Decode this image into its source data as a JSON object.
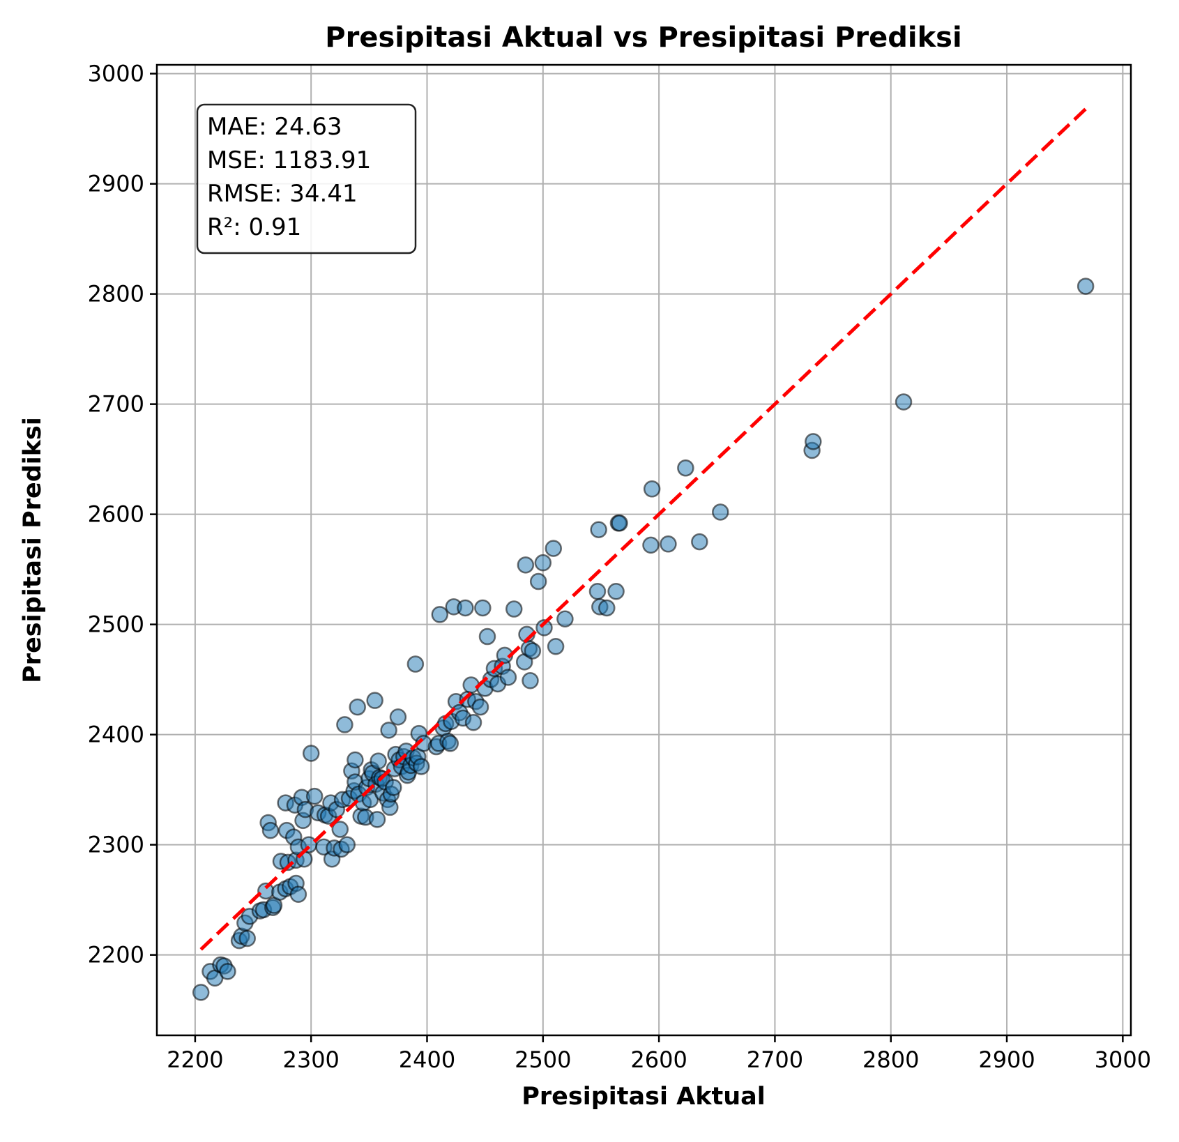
{
  "chart_data": {
    "type": "scatter",
    "title": "Presipitasi Aktual vs Presipitasi Prediksi",
    "xlabel": "Presipitasi Aktual",
    "ylabel": "Presipitasi Prediksi",
    "xlim": [
      2167,
      3007
    ],
    "ylim": [
      2127,
      3008
    ],
    "xticks": [
      2200,
      2300,
      2400,
      2500,
      2600,
      2700,
      2800,
      2900,
      3000
    ],
    "yticks": [
      2200,
      2300,
      2400,
      2500,
      2600,
      2700,
      2800,
      2900,
      3000
    ],
    "grid": true,
    "reference_line": {
      "style": "dashed",
      "color": "#ff0000",
      "from": [
        2205,
        2205
      ],
      "to": [
        2968,
        2968
      ]
    },
    "point_color": "#1f77b4",
    "stats": [
      "MAE: 24.63",
      "MSE: 1183.91",
      "RMSE: 34.41",
      "R²: 0.91"
    ],
    "points": [
      [
        2205,
        2166
      ],
      [
        2213,
        2185
      ],
      [
        2217,
        2179
      ],
      [
        2222,
        2191
      ],
      [
        2225,
        2190
      ],
      [
        2228,
        2185
      ],
      [
        2238,
        2213
      ],
      [
        2240,
        2217
      ],
      [
        2245,
        2215
      ],
      [
        2243,
        2229
      ],
      [
        2247,
        2235
      ],
      [
        2256,
        2240
      ],
      [
        2259,
        2241
      ],
      [
        2261,
        2258
      ],
      [
        2267,
        2243
      ],
      [
        2268,
        2245
      ],
      [
        2273,
        2257
      ],
      [
        2278,
        2260
      ],
      [
        2282,
        2262
      ],
      [
        2287,
        2265
      ],
      [
        2289,
        2255
      ],
      [
        2274,
        2285
      ],
      [
        2280,
        2284
      ],
      [
        2287,
        2286
      ],
      [
        2294,
        2287
      ],
      [
        2263,
        2320
      ],
      [
        2265,
        2313
      ],
      [
        2278,
        2338
      ],
      [
        2279,
        2313
      ],
      [
        2285,
        2307
      ],
      [
        2286,
        2336
      ],
      [
        2289,
        2298
      ],
      [
        2292,
        2343
      ],
      [
        2293,
        2322
      ],
      [
        2295,
        2332
      ],
      [
        2298,
        2300
      ],
      [
        2300,
        2383
      ],
      [
        2303,
        2344
      ],
      [
        2306,
        2329
      ],
      [
        2311,
        2298
      ],
      [
        2312,
        2327
      ],
      [
        2315,
        2326
      ],
      [
        2317,
        2338
      ],
      [
        2318,
        2287
      ],
      [
        2320,
        2297
      ],
      [
        2322,
        2332
      ],
      [
        2325,
        2314
      ],
      [
        2326,
        2296
      ],
      [
        2327,
        2341
      ],
      [
        2329,
        2409
      ],
      [
        2331,
        2300
      ],
      [
        2333,
        2342
      ],
      [
        2335,
        2367
      ],
      [
        2337,
        2349
      ],
      [
        2338,
        2377
      ],
      [
        2338,
        2357
      ],
      [
        2340,
        2425
      ],
      [
        2341,
        2346
      ],
      [
        2343,
        2326
      ],
      [
        2345,
        2338
      ],
      [
        2347,
        2325
      ],
      [
        2348,
        2352
      ],
      [
        2350,
        2360
      ],
      [
        2351,
        2341
      ],
      [
        2352,
        2368
      ],
      [
        2353,
        2365
      ],
      [
        2355,
        2431
      ],
      [
        2356,
        2355
      ],
      [
        2357,
        2323
      ],
      [
        2358,
        2376
      ],
      [
        2359,
        2361
      ],
      [
        2361,
        2360
      ],
      [
        2362,
        2347
      ],
      [
        2364,
        2357
      ],
      [
        2366,
        2341
      ],
      [
        2367,
        2404
      ],
      [
        2368,
        2334
      ],
      [
        2369,
        2346
      ],
      [
        2371,
        2352
      ],
      [
        2372,
        2369
      ],
      [
        2373,
        2382
      ],
      [
        2375,
        2416
      ],
      [
        2376,
        2377
      ],
      [
        2378,
        2371
      ],
      [
        2380,
        2380
      ],
      [
        2382,
        2385
      ],
      [
        2383,
        2363
      ],
      [
        2384,
        2366
      ],
      [
        2386,
        2372
      ],
      [
        2388,
        2379
      ],
      [
        2390,
        2464
      ],
      [
        2391,
        2374
      ],
      [
        2392,
        2380
      ],
      [
        2393,
        2401
      ],
      [
        2395,
        2371
      ],
      [
        2397,
        2392
      ],
      [
        2408,
        2389
      ],
      [
        2410,
        2392
      ],
      [
        2411,
        2509
      ],
      [
        2414,
        2406
      ],
      [
        2416,
        2410
      ],
      [
        2418,
        2394
      ],
      [
        2420,
        2392
      ],
      [
        2421,
        2412
      ],
      [
        2423,
        2516
      ],
      [
        2425,
        2430
      ],
      [
        2428,
        2420
      ],
      [
        2431,
        2415
      ],
      [
        2433,
        2515
      ],
      [
        2435,
        2432
      ],
      [
        2438,
        2445
      ],
      [
        2440,
        2411
      ],
      [
        2442,
        2430
      ],
      [
        2446,
        2425
      ],
      [
        2448,
        2515
      ],
      [
        2450,
        2442
      ],
      [
        2452,
        2489
      ],
      [
        2455,
        2450
      ],
      [
        2458,
        2460
      ],
      [
        2461,
        2446
      ],
      [
        2465,
        2462
      ],
      [
        2467,
        2472
      ],
      [
        2470,
        2452
      ],
      [
        2475,
        2514
      ],
      [
        2484,
        2466
      ],
      [
        2485,
        2554
      ],
      [
        2486,
        2491
      ],
      [
        2488,
        2478
      ],
      [
        2489,
        2449
      ],
      [
        2491,
        2476
      ],
      [
        2496,
        2539
      ],
      [
        2500,
        2556
      ],
      [
        2501,
        2497
      ],
      [
        2509,
        2569
      ],
      [
        2511,
        2480
      ],
      [
        2519,
        2505
      ],
      [
        2547,
        2530
      ],
      [
        2548,
        2586
      ],
      [
        2549,
        2516
      ],
      [
        2555,
        2515
      ],
      [
        2563,
        2530
      ],
      [
        2565,
        2592
      ],
      [
        2566,
        2592
      ],
      [
        2593,
        2572
      ],
      [
        2594,
        2623
      ],
      [
        2608,
        2573
      ],
      [
        2623,
        2642
      ],
      [
        2635,
        2575
      ],
      [
        2653,
        2602
      ],
      [
        2732,
        2658
      ],
      [
        2733,
        2666
      ],
      [
        2811,
        2702
      ],
      [
        2968,
        2807
      ]
    ]
  }
}
